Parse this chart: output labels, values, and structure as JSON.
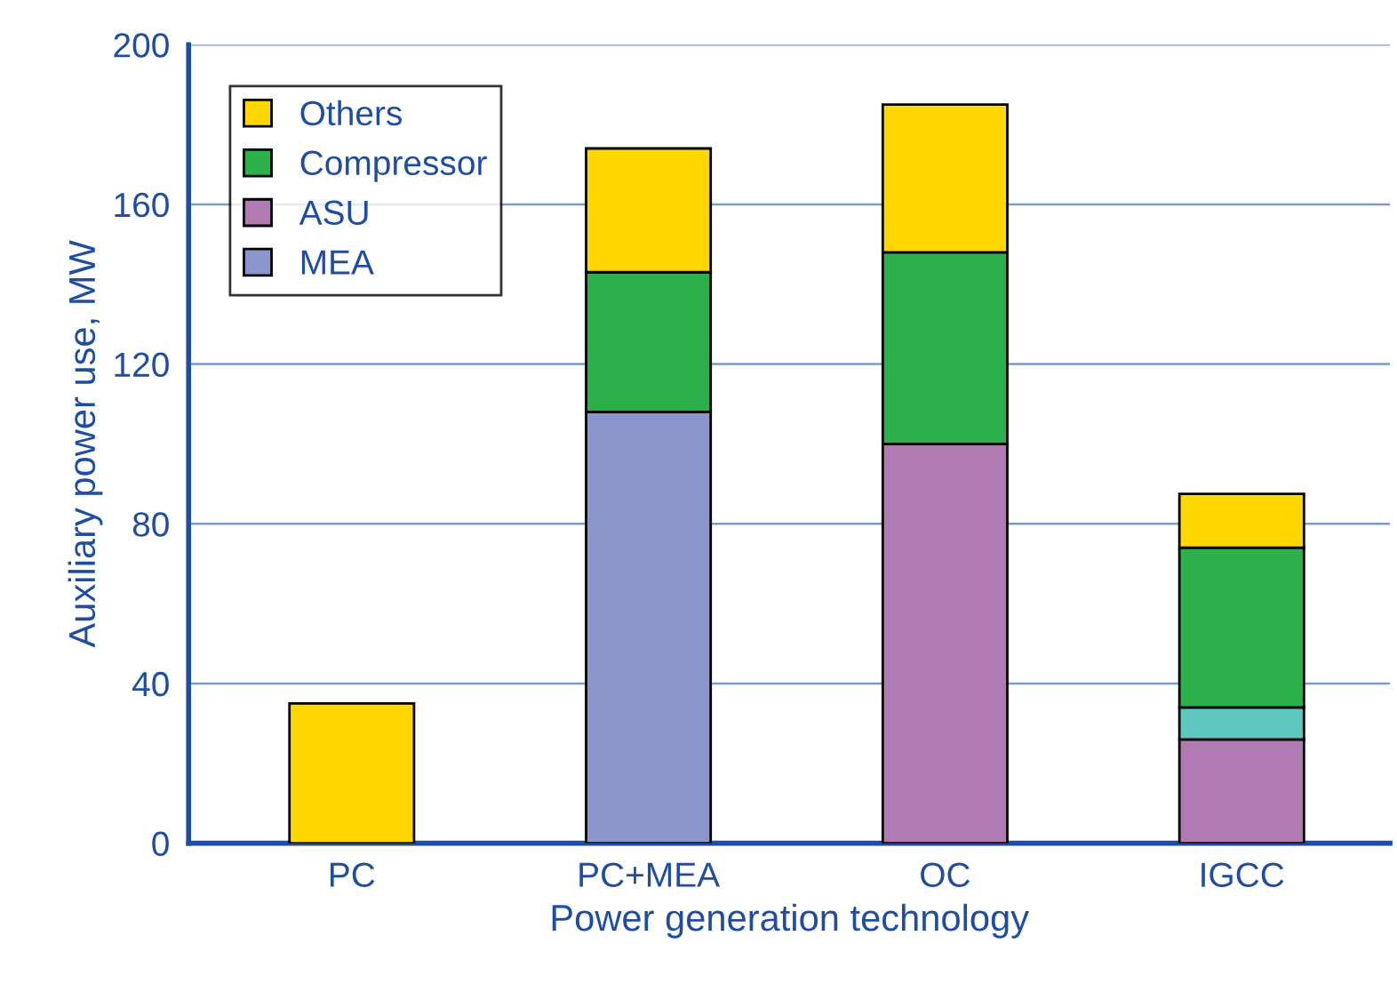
{
  "chart_data": {
    "type": "bar",
    "stacked": true,
    "xlabel": "Power generation technology",
    "ylabel": "Auxiliary power use, MW",
    "categories": [
      "PC",
      "PC+MEA",
      "OC",
      "IGCC"
    ],
    "series": [
      {
        "name": "MEA",
        "color": "#8a96cc",
        "values": [
          0,
          108,
          0,
          0
        ]
      },
      {
        "name": "ASU",
        "color": "#b07ab3",
        "values": [
          0,
          0,
          100,
          26
        ]
      },
      {
        "color": "#5cc8c0",
        "values": [
          0,
          0,
          0,
          8
        ]
      },
      {
        "name": "Compressor",
        "color": "#2bb04a",
        "values": [
          0,
          35,
          48,
          40
        ]
      },
      {
        "name": "Others",
        "color": "#ffd700",
        "values": [
          35,
          31,
          37,
          13.5
        ]
      }
    ],
    "ylim": [
      0,
      200
    ],
    "yticks": [
      0,
      40,
      80,
      120,
      160,
      200
    ],
    "grid": "y",
    "legend": "top left"
  }
}
